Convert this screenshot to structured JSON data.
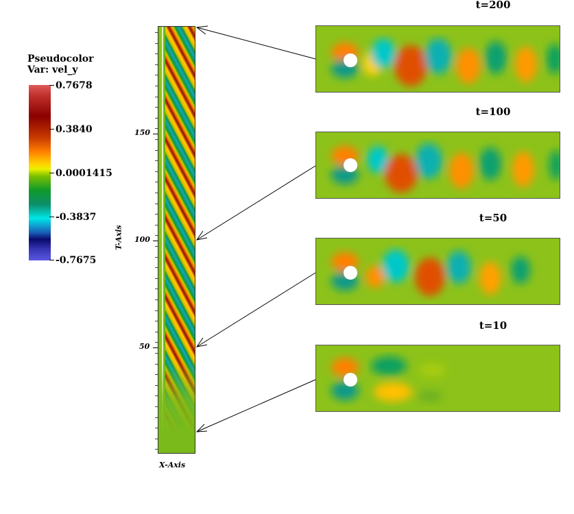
{
  "legend": {
    "title_line1": "Pseudocolor",
    "title_line2": "Var: vel_y",
    "ticks": [
      "0.7678",
      "0.3840",
      "0.0001415",
      "-0.3837",
      "-0.7675"
    ]
  },
  "strip": {
    "y_axis_label": "T-Axis",
    "x_axis_label": "X-Axis",
    "y_ticks": [
      "150",
      "100",
      "50"
    ]
  },
  "panels": [
    {
      "title": "t=200"
    },
    {
      "title": "t=100"
    },
    {
      "title": "t=50"
    },
    {
      "title": "t=10"
    }
  ],
  "colors": {
    "background_field": "#8cc21a",
    "positive_high": "#8a0000",
    "positive_mid": "#ff7f00",
    "near_zero": "#e9ef00",
    "negative_mid": "#00d8d8",
    "negative_high": "#0a0a6e"
  }
}
